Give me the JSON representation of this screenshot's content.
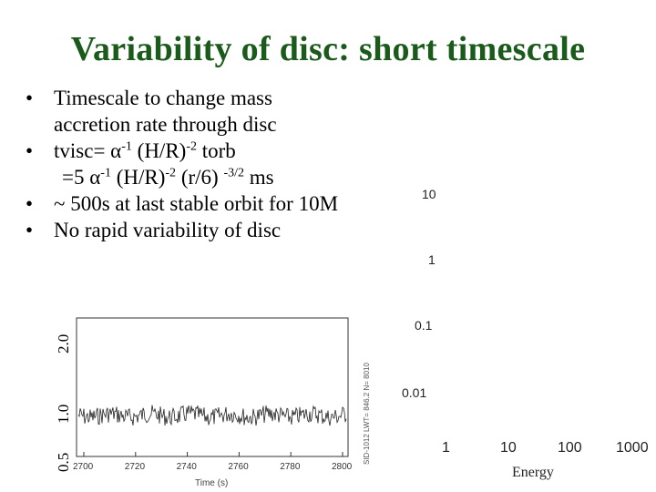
{
  "title": "Variability of disc: short timescale",
  "bullets": {
    "b1_line1": "Timescale to change mass",
    "b1_line2": "accretion rate through disc",
    "b2_prefix": "tvisc= ",
    "b2_alpha": "α",
    "b2_exp1": "-1",
    "b2_mid": " (H/R)",
    "b2_exp2": "-2",
    "b2_suffix": " torb",
    "b3_prefix": "=5 ",
    "b3_alpha": "α",
    "b3_exp1": "-1",
    "b3_mid": " (H/R)",
    "b3_exp2": "-2",
    "b3_mid2": " (r/6) ",
    "b3_exp3": "-3/2",
    "b3_suffix": " ms",
    "b4": "~ 500s at last stable orbit for 10M",
    "b5": "No rapid variability of disc",
    "marker": "•"
  },
  "lightcurve": {
    "ylabels": [
      "2.0",
      "1.0",
      "0.5"
    ],
    "xticks": [
      "2700",
      "2720",
      "2740",
      "2760",
      "2780",
      "2800"
    ],
    "xlabel": "Time (s)",
    "side_text": "SID-1012   LWT= 846.2   N= 8010"
  },
  "spectrum": {
    "yticks": [
      "10",
      "1",
      "0.1",
      "0.01"
    ],
    "xticks": [
      "1",
      "10",
      "100",
      "1000"
    ],
    "xlabel": "Energy"
  },
  "colors": {
    "title": "#1a5a1a",
    "trace": "#222222"
  }
}
